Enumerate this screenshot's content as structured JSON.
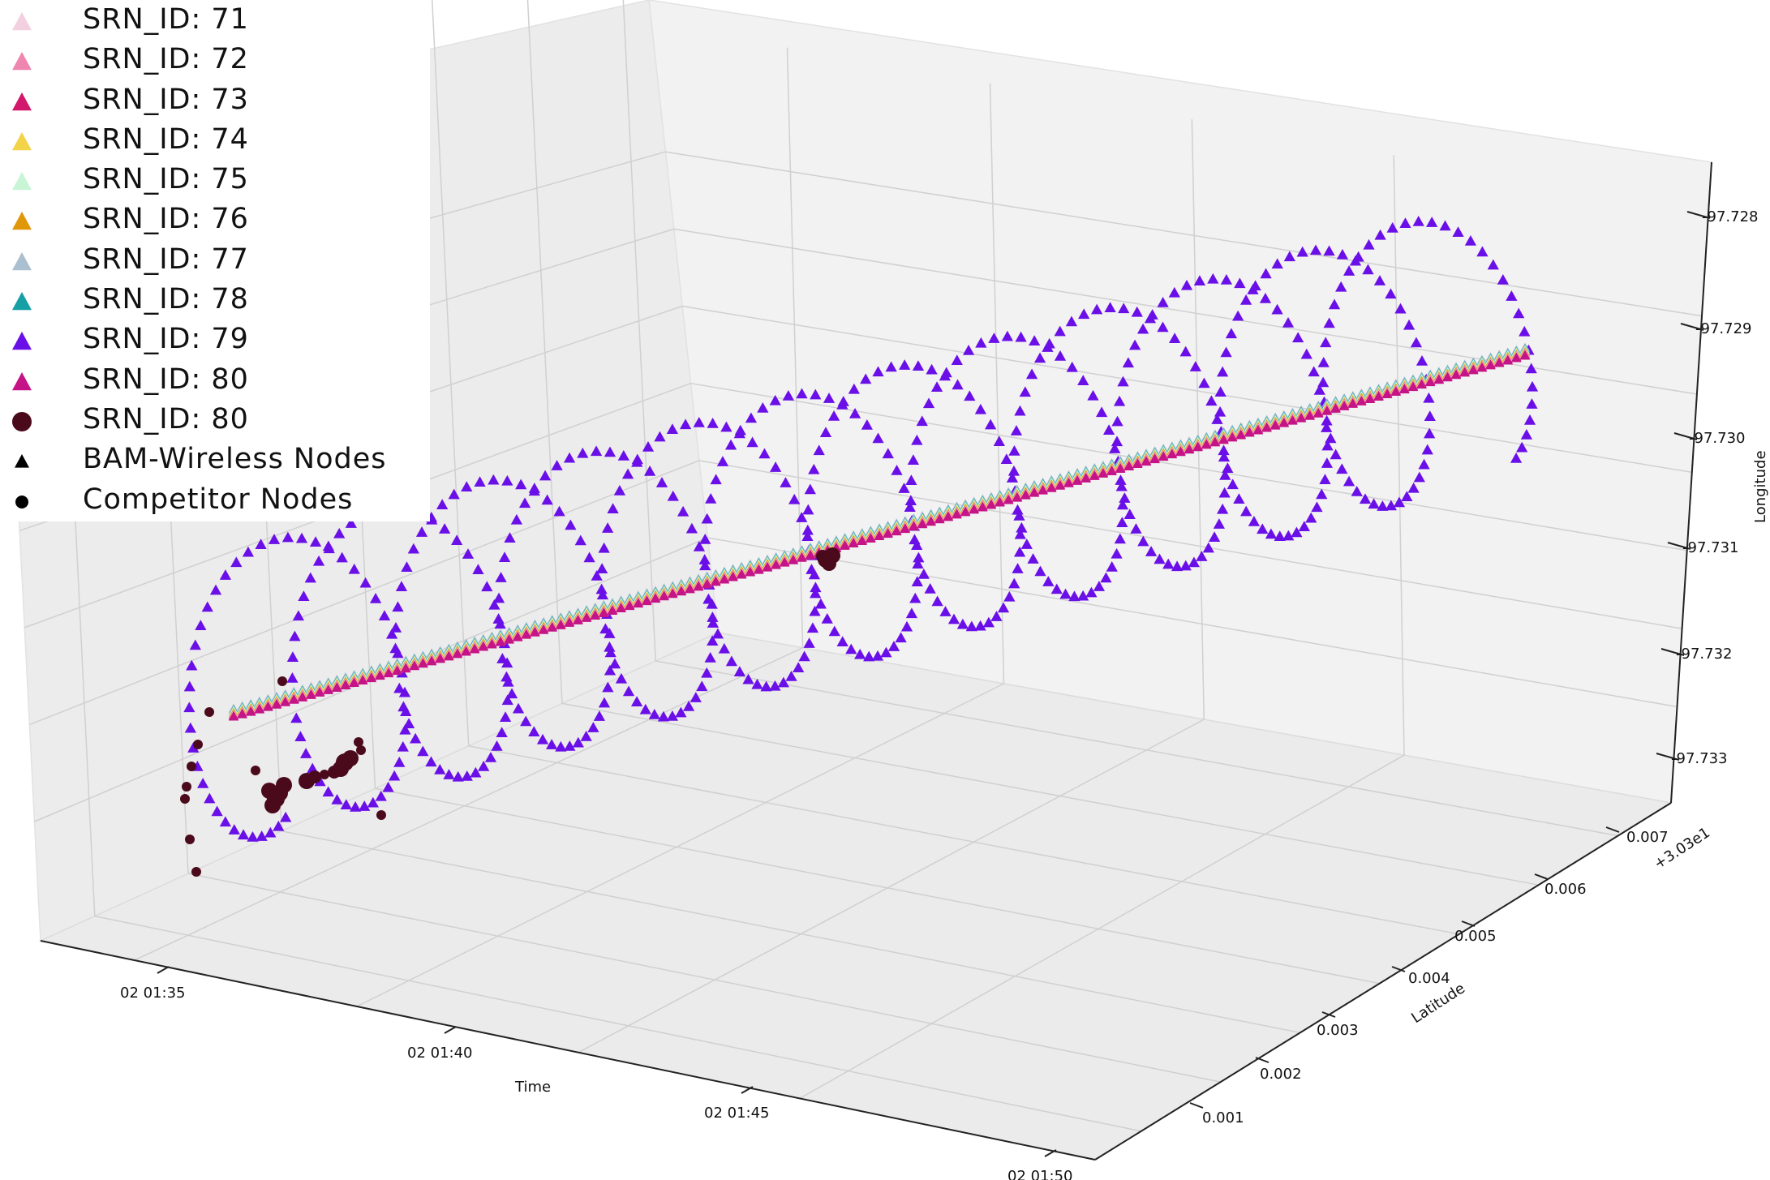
{
  "chart_data": {
    "type": "scatter",
    "projection": "3d",
    "xlabel": "Time",
    "ylabel": "Latitude",
    "zlabel": "Longitude",
    "x_ticks": [
      "02 01:35",
      "02 01:40",
      "02 01:45",
      "02 01:50"
    ],
    "y_ticks": [
      "0.001",
      "0.002",
      "0.003",
      "0.004",
      "0.005",
      "0.006",
      "0.007"
    ],
    "y_offset_label": "+3.03e1",
    "z_ticks": [
      "-97.728",
      "-97.729",
      "-97.730",
      "-97.731",
      "-97.732",
      "-97.733"
    ],
    "grid": true,
    "legend_position": "upper-left",
    "legend": [
      {
        "label": "SRN_ID: 71",
        "marker": "triangle",
        "color": "#f2d0df"
      },
      {
        "label": "SRN_ID: 72",
        "marker": "triangle",
        "color": "#ee86b0"
      },
      {
        "label": "SRN_ID: 73",
        "marker": "triangle",
        "color": "#d1186a"
      },
      {
        "label": "SRN_ID: 74",
        "marker": "triangle",
        "color": "#f3d34a"
      },
      {
        "label": "SRN_ID: 75",
        "marker": "triangle",
        "color": "#c8f5d6"
      },
      {
        "label": "SRN_ID: 76",
        "marker": "triangle",
        "color": "#e0970a"
      },
      {
        "label": "SRN_ID: 77",
        "marker": "triangle",
        "color": "#aabfcf"
      },
      {
        "label": "SRN_ID: 78",
        "marker": "triangle",
        "color": "#169fa5"
      },
      {
        "label": "SRN_ID: 79",
        "marker": "triangle",
        "color": "#6a0fe8"
      },
      {
        "label": "SRN_ID: 80",
        "marker": "triangle",
        "color": "#c41487"
      },
      {
        "label": "SRN_ID: 80",
        "marker": "circle",
        "color": "#4a0a1c"
      },
      {
        "label": "BAM-Wireless Nodes",
        "marker": "triangle",
        "color": "#000000"
      },
      {
        "label": "Competitor Nodes",
        "marker": "circle",
        "color": "#000000"
      }
    ],
    "series": [
      {
        "name": "SRN_ID: 79",
        "pattern": "helix",
        "loops": 12,
        "start_time": "02 01:33",
        "end_time": "02 01:50",
        "latitude_range": [
          30.3035,
          30.3065
        ],
        "longitude_range": [
          -97.7332,
          -97.7283
        ]
      },
      {
        "name": "SRN_ID: 71-78, 80",
        "pattern": "linear",
        "start": {
          "time": "02 01:34",
          "latitude": 30.3052,
          "longitude": -97.7329
        },
        "end": {
          "time": "02 01:49",
          "latitude": 30.3052,
          "longitude": -97.7293
        }
      },
      {
        "name": "SRN_ID: 80",
        "marker": "circle",
        "pattern": "clusters",
        "clusters": [
          {
            "time": "02 01:34",
            "latitude_range": [
              30.3038,
              30.3046
            ],
            "longitude_range": [
              -97.7333,
              -97.7327
            ]
          },
          {
            "time": "02 01:36",
            "latitude": 30.3047,
            "longitude": -97.7328
          },
          {
            "time": "02 01:41",
            "latitude": 30.3052,
            "longitude": -97.7313
          }
        ]
      }
    ]
  }
}
